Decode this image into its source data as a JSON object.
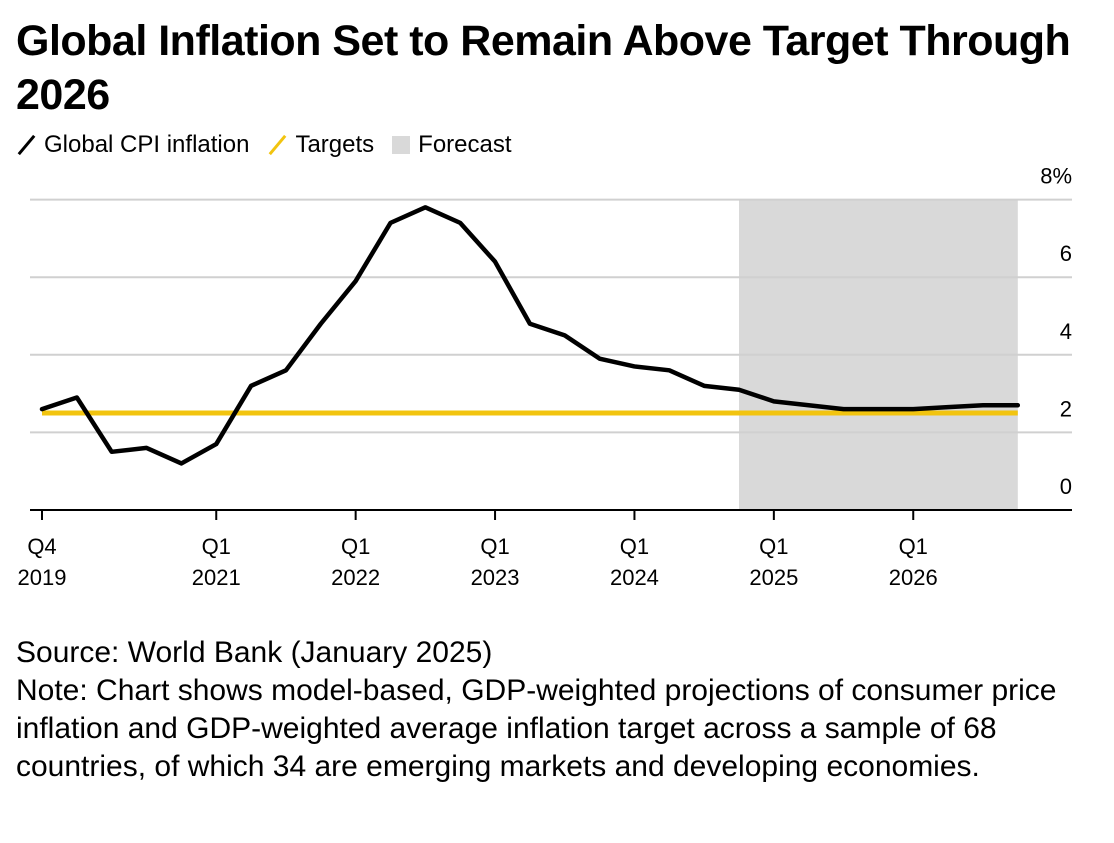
{
  "title": "Global Inflation Set to Remain Above Target Through 2026",
  "legend": {
    "cpi_label": "Global CPI inflation",
    "target_label": "Targets",
    "forecast_label": "Forecast"
  },
  "footer": {
    "source": "Source: World Bank (January 2025)",
    "note": "Note: Chart shows model-based, GDP-weighted projections of consumer price inflation and GDP-weighted average inflation target across a sample of 68 countries, of which 34 are emerging markets and developing economies."
  },
  "colors": {
    "cpi": "#000000",
    "target": "#f2c40f",
    "forecast": "#d9d9d9",
    "grid": "#d0d0d0"
  },
  "chart_data": {
    "type": "line",
    "x": [
      "Q4 2019",
      "Q1 2020",
      "Q2 2020",
      "Q3 2020",
      "Q4 2020",
      "Q1 2021",
      "Q2 2021",
      "Q3 2021",
      "Q4 2021",
      "Q1 2022",
      "Q2 2022",
      "Q3 2022",
      "Q4 2022",
      "Q1 2023",
      "Q2 2023",
      "Q3 2023",
      "Q4 2023",
      "Q1 2024",
      "Q2 2024",
      "Q3 2024",
      "Q4 2024",
      "Q1 2025",
      "Q2 2025",
      "Q3 2025",
      "Q4 2025",
      "Q1 2026",
      "Q2 2026",
      "Q3 2026",
      "Q4 2026"
    ],
    "series": [
      {
        "name": "Global CPI inflation",
        "values": [
          2.6,
          2.9,
          1.5,
          1.6,
          1.2,
          1.7,
          3.2,
          3.6,
          4.8,
          5.9,
          7.4,
          7.8,
          7.4,
          6.4,
          4.8,
          4.5,
          3.9,
          3.7,
          3.6,
          3.2,
          3.1,
          2.8,
          2.7,
          2.6,
          2.6,
          2.6,
          2.65,
          2.7,
          2.7
        ]
      },
      {
        "name": "Targets",
        "values": [
          2.5,
          2.5,
          2.5,
          2.5,
          2.5,
          2.5,
          2.5,
          2.5,
          2.5,
          2.5,
          2.5,
          2.5,
          2.5,
          2.5,
          2.5,
          2.5,
          2.5,
          2.5,
          2.5,
          2.5,
          2.5,
          2.5,
          2.5,
          2.5,
          2.5,
          2.5,
          2.5,
          2.5,
          2.5
        ]
      }
    ],
    "forecast_range": [
      "Q4 2024",
      "Q4 2026"
    ],
    "x_ticks": [
      {
        "at": "Q4 2019",
        "q": "Q4",
        "year": "2019"
      },
      {
        "at": "Q1 2021",
        "q": "Q1",
        "year": "2021"
      },
      {
        "at": "Q1 2022",
        "q": "Q1",
        "year": "2022"
      },
      {
        "at": "Q1 2023",
        "q": "Q1",
        "year": "2023"
      },
      {
        "at": "Q1 2024",
        "q": "Q1",
        "year": "2024"
      },
      {
        "at": "Q1 2025",
        "q": "Q1",
        "year": "2025"
      },
      {
        "at": "Q1 2026",
        "q": "Q1",
        "year": "2026"
      }
    ],
    "y_ticks": [
      {
        "value": 0,
        "label": "0"
      },
      {
        "value": 2,
        "label": "2"
      },
      {
        "value": 4,
        "label": "4"
      },
      {
        "value": 6,
        "label": "6"
      },
      {
        "value": 8,
        "label": "8%"
      }
    ],
    "ylim": [
      0,
      8
    ],
    "grid": true,
    "y_axis_side": "right",
    "legend_position": "top-left"
  }
}
